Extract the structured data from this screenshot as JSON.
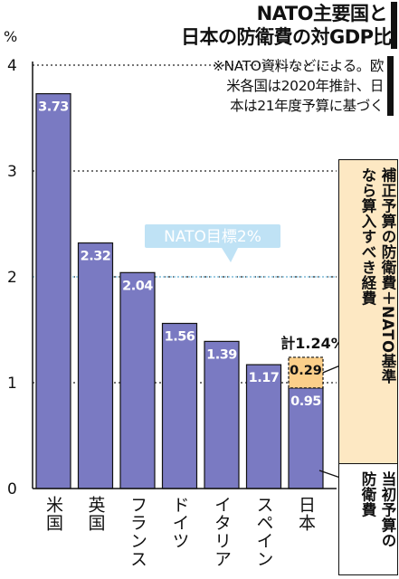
{
  "title": [
    "NATO主要国と",
    "日本の防衛費の対GDP比"
  ],
  "note": [
    "※NATO資料などによる。欧",
    "米各国は2020年推計、日",
    "本は21年度予算に基づく"
  ],
  "callouts": {
    "supplementary": [
      "補正予算の防衛費＋NATO基準",
      "なら算入すべき経費"
    ],
    "initial": [
      "当初予算の",
      "防衛費"
    ]
  },
  "chart_data": {
    "type": "bar",
    "categories": [
      "米国",
      "英国",
      "フランス",
      "ドイツ",
      "イタリア",
      "スペイン",
      "日本"
    ],
    "values": [
      3.73,
      2.32,
      2.04,
      1.56,
      1.39,
      1.17,
      0.95
    ],
    "value_labels": [
      "3.73",
      "2.32",
      "2.04",
      "1.56",
      "1.39",
      "1.17",
      "0.95"
    ],
    "stacked_extra": {
      "category": "日本",
      "value": 0.29,
      "label": "0.29",
      "total_label": "計1.24%"
    },
    "ylabel": "%",
    "ylim": [
      0,
      4
    ],
    "yticks": [
      "0",
      "1",
      "2",
      "3",
      "4"
    ],
    "target": {
      "value": 2,
      "label": "NATO目標2%"
    },
    "grid": "dotted horizontal",
    "colors": {
      "bar": "#7a7ac2",
      "extra": "#fbcf8a",
      "target_label": "#bfe2f5",
      "target_line": "#8fcbe8"
    }
  }
}
